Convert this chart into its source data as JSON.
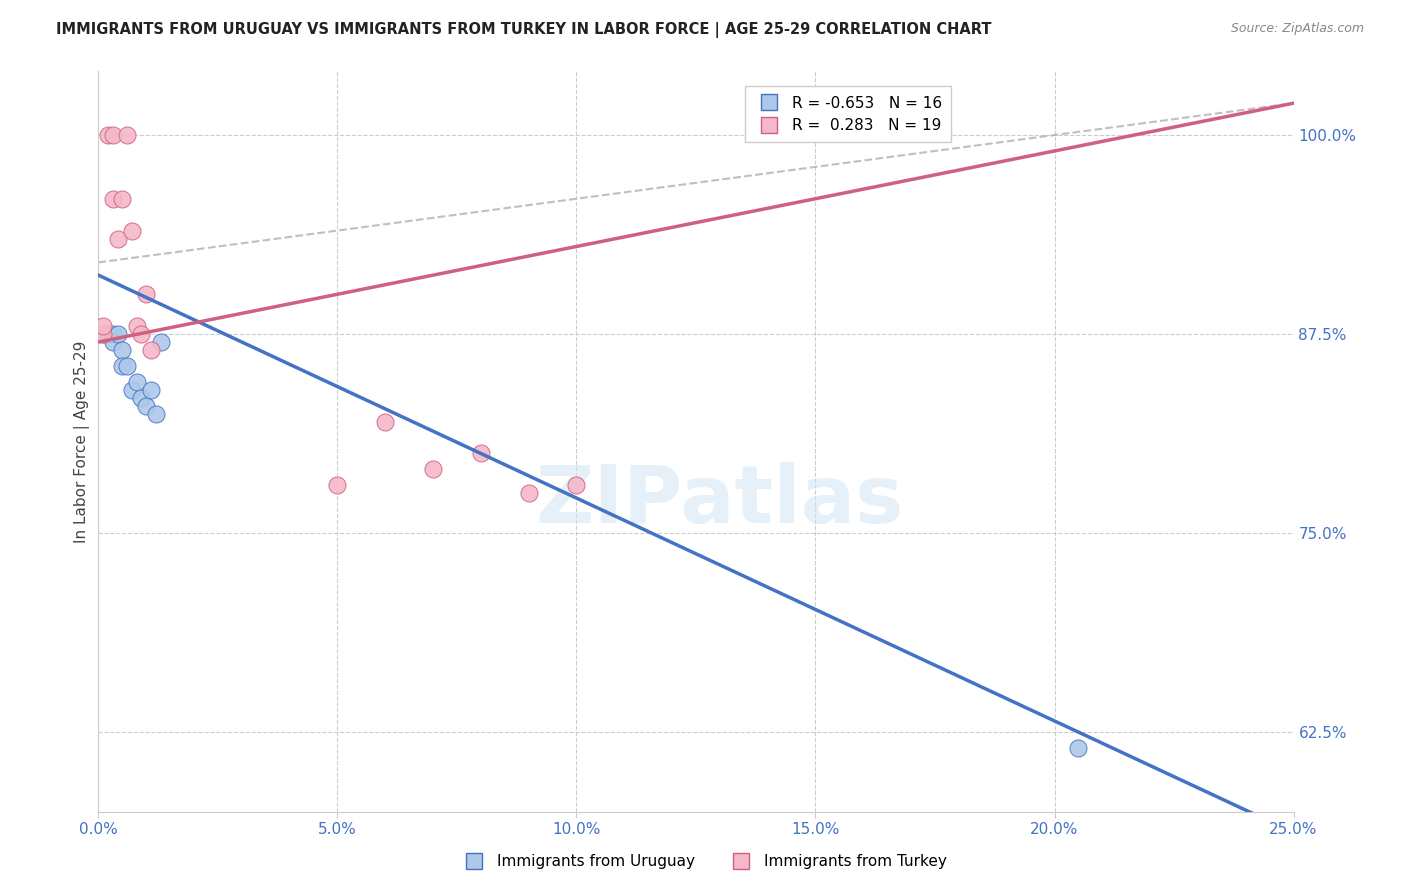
{
  "title": "IMMIGRANTS FROM URUGUAY VS IMMIGRANTS FROM TURKEY IN LABOR FORCE | AGE 25-29 CORRELATION CHART",
  "source": "Source: ZipAtlas.com",
  "ylabel": "In Labor Force | Age 25-29",
  "legend_label_uruguay": "Immigrants from Uruguay",
  "legend_label_turkey": "Immigrants from Turkey",
  "r_uruguay": -0.653,
  "n_uruguay": 16,
  "r_turkey": 0.283,
  "n_turkey": 19,
  "color_uruguay": "#adc8e8",
  "color_turkey": "#f4b8c8",
  "line_color_uruguay": "#4472c4",
  "line_color_turkey": "#d06080",
  "xlim": [
    0.0,
    0.25
  ],
  "ylim": [
    0.575,
    1.04
  ],
  "yticks": [
    0.625,
    0.75,
    0.875,
    1.0
  ],
  "ytick_labels": [
    "62.5%",
    "75.0%",
    "87.5%",
    "100.0%"
  ],
  "xticks": [
    0.0,
    0.05,
    0.1,
    0.15,
    0.2,
    0.25
  ],
  "xtick_labels": [
    "0.0%",
    "5.0%",
    "10.0%",
    "15.0%",
    "20.0%",
    "25.0%"
  ],
  "uruguay_x": [
    0.001,
    0.002,
    0.003,
    0.003,
    0.004,
    0.005,
    0.005,
    0.006,
    0.007,
    0.008,
    0.009,
    0.01,
    0.011,
    0.012,
    0.013,
    0.205
  ],
  "uruguay_y": [
    0.875,
    0.875,
    0.875,
    0.87,
    0.875,
    0.865,
    0.855,
    0.855,
    0.84,
    0.845,
    0.835,
    0.83,
    0.84,
    0.825,
    0.87,
    0.615
  ],
  "turkey_x": [
    0.001,
    0.001,
    0.002,
    0.003,
    0.003,
    0.004,
    0.005,
    0.006,
    0.007,
    0.008,
    0.009,
    0.01,
    0.011,
    0.05,
    0.06,
    0.07,
    0.08,
    0.09,
    0.1
  ],
  "turkey_y": [
    0.875,
    0.88,
    1.0,
    1.0,
    0.96,
    0.935,
    0.96,
    1.0,
    0.94,
    0.88,
    0.875,
    0.9,
    0.865,
    0.78,
    0.82,
    0.79,
    0.8,
    0.775,
    0.78
  ],
  "reg_uruguay": [
    0.912,
    -1.4
  ],
  "reg_turkey": [
    0.87,
    0.6
  ],
  "diag_line": [
    [
      0.0,
      0.25
    ],
    [
      0.92,
      1.02
    ]
  ],
  "watermark": "ZIPatlas",
  "background_color": "#ffffff",
  "grid_color": "#cccccc"
}
